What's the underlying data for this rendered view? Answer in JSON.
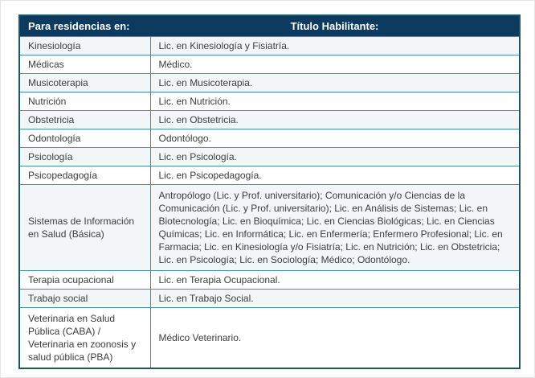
{
  "page": {
    "background": "#ffffff",
    "edge_border": "#e6e6e6"
  },
  "table": {
    "colors": {
      "header_bg": "#0d3a5f",
      "header_text": "#ffffff",
      "outer_border": "#19586c",
      "inner_border": "#3f8fa6",
      "alt_row_bg": "#f3f6f9",
      "row_bg": "#ffffff",
      "body_text": "#3c3c3c"
    },
    "header": {
      "residencias": "Para residencias en:",
      "titulo": "Título Habilitante:"
    },
    "rows": [
      {
        "residencia": "Kinesiología",
        "titulo": "Lic. en Kinesiología y Fisiatría."
      },
      {
        "residencia": "Médicas",
        "titulo": "Médico."
      },
      {
        "residencia": "Musicoterapia",
        "titulo": "Lic. en Musicoterapia."
      },
      {
        "residencia": "Nutrición",
        "titulo": "Lic. en Nutrición."
      },
      {
        "residencia": "Obstetricia",
        "titulo": "Lic. en Obstetricia."
      },
      {
        "residencia": "Odontología",
        "titulo": "Odontólogo."
      },
      {
        "residencia": "Psicología",
        "titulo": "Lic. en Psicología."
      },
      {
        "residencia": "Psicopedagogía",
        "titulo": "Lic. en Psicopedagogía."
      },
      {
        "residencia": "Sistemas de Información en Salud (Básica)",
        "titulo": "Antropólogo (Lic. y Prof. universitario); Comunicación y/o Ciencias de la Comunicación (Lic. y Prof. universitario); Lic. en Análisis de Sistemas; Lic. en Biotecnología; Lic. en Bioquímica; Lic. en Ciencias Biológicas; Lic. en Ciencias Químicas; Lic. en Informática; Lic. en Enfermería; Enfermero Profesional; Lic. en Farmacia; Lic. en Kinesiología y/o Fisiatría; Lic. en Nutrición; Lic. en Obstetricia; Lic. en Psicología; Lic. en Sociología; Médico; Odontólogo."
      },
      {
        "residencia": "Terapia ocupacional",
        "titulo": "Lic. en Terapia Ocupacional."
      },
      {
        "residencia": "Trabajo social",
        "titulo": "Lic. en Trabajo Social."
      },
      {
        "residencia": "Veterinaria en Salud Pública (CABA) / Veterinaria en zoonosis y salud pública (PBA)",
        "titulo": "Médico Veterinario."
      }
    ]
  }
}
